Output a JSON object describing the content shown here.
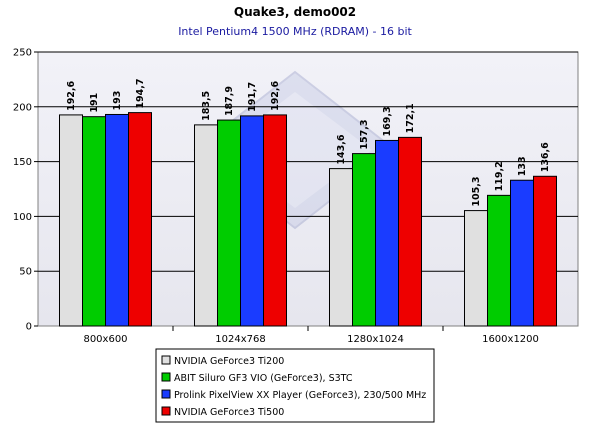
{
  "chart_data": {
    "type": "bar",
    "title": "Quake3, demo002",
    "subtitle": "Intel Pentium4 1500 MHz (RDRAM) - 16 bit",
    "xlabel": "",
    "ylabel": "",
    "categories": [
      "800x600",
      "1024x768",
      "1280x1024",
      "1600x1200"
    ],
    "ylim": [
      0,
      250
    ],
    "yticks": [
      0,
      50,
      100,
      150,
      200,
      250
    ],
    "grid": true,
    "legend": "bottom-right",
    "series": [
      {
        "name": "NVIDIA GeForce3 Ti200",
        "color": "#e0e0e0",
        "values": [
          192.6,
          191,
          193,
          194.7
        ],
        "labels": [
          "192,6",
          "191",
          "193",
          "194,7"
        ]
      },
      {
        "name": "ABIT Siluro GF3 VIO (GeForce3), S3TC",
        "color": "#00cc00",
        "values": [
          183.5,
          187.9,
          191.7,
          192.6
        ],
        "labels": [
          "183,5",
          "187,9",
          "191,7",
          "192,6"
        ]
      },
      {
        "name": "Prolink PixelView XX Player (GeForce3), 230/500 MHz",
        "color": "#1a3cff",
        "values": [
          143.6,
          157.3,
          169.3,
          172.1
        ],
        "labels": [
          "143,6",
          "157,3",
          "169,3",
          "172,1"
        ]
      },
      {
        "name": "NVIDIA GeForce3 Ti500",
        "color": "#ee0000",
        "values": [
          105.3,
          119.2,
          133,
          136.6
        ],
        "labels": [
          "105,3",
          "119,2",
          "133",
          "136,6"
        ]
      }
    ],
    "category_series_map": "values are listed per category group in reading order left-to-right"
  }
}
